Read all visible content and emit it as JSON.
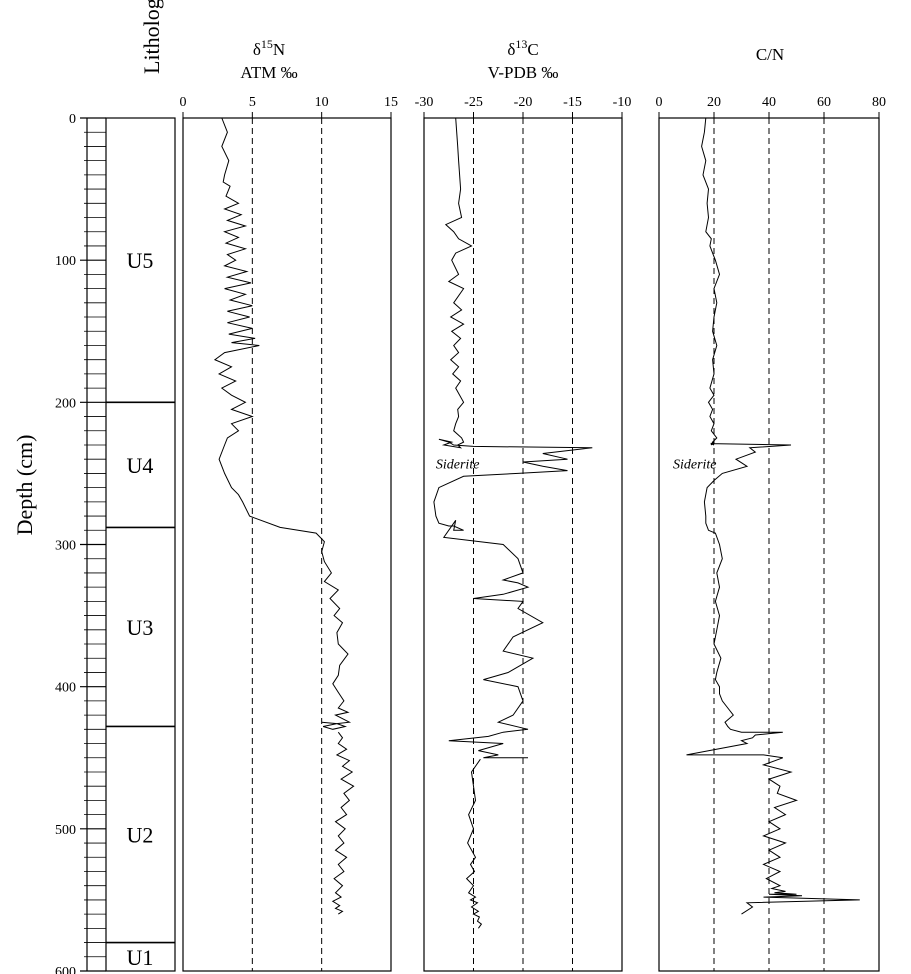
{
  "chart_data": [
    {
      "type": "table",
      "panel": "lithology",
      "title": "Lithology",
      "ylabel": "Depth (cm)",
      "ylim": [
        0,
        600
      ],
      "yticks": [
        0,
        100,
        200,
        300,
        400,
        500,
        600
      ],
      "units": [
        {
          "label": "U5",
          "top": 0,
          "bottom": 200
        },
        {
          "label": "U4",
          "top": 200,
          "bottom": 288
        },
        {
          "label": "U3",
          "top": 288,
          "bottom": 428
        },
        {
          "label": "U2",
          "top": 428,
          "bottom": 580
        },
        {
          "label": "U1",
          "top": 580,
          "bottom": 600
        }
      ]
    },
    {
      "type": "line",
      "panel": "d15n",
      "title_symbol": "δ",
      "title_sup": "15",
      "title_elem": "N",
      "subtitle": "ATM ‰",
      "xlim": [
        0,
        15
      ],
      "xticks": [
        "0",
        "5",
        "10",
        "15"
      ],
      "xtick_values": [
        0,
        5,
        10,
        15
      ],
      "reference_lines": [
        5,
        10
      ],
      "series": [
        {
          "x": [
            2.8,
            3.2,
            2.8,
            3.3,
            3.0,
            2.9,
            3.4,
            3.1,
            4.0,
            3.0,
            4.2,
            3.2,
            4.5,
            3.0,
            4.0,
            3.1,
            4.5,
            3.2,
            3.8,
            3.0,
            4.6,
            3.2,
            4.9,
            3.0,
            4.5,
            3.4,
            5.0,
            3.2,
            4.8,
            3.2,
            5.0,
            3.3,
            5.2,
            3.5,
            5.5,
            3.0,
            2.3,
            3.5,
            2.6,
            3.8,
            2.8,
            3.5,
            4.5,
            3.5,
            5.0,
            3.5,
            4.0,
            3.2,
            3.0,
            2.6,
            3.0,
            3.5,
            4.0,
            4.3,
            4.8,
            7.0,
            9.6,
            10.2,
            10.0,
            10.2,
            10.7,
            10.2,
            11.2,
            10.6,
            11.3,
            10.9,
            11.5,
            11.1,
            11.2,
            11.9,
            11.3,
            11.2,
            10.8,
            11.2,
            11.6,
            11.2,
            11.9,
            11.0,
            12.0,
            11.1,
            11.7,
            10.8,
            10.1,
            11.1,
            10.0
          ],
          "y": [
            0,
            10,
            20,
            30,
            40,
            45,
            48,
            55,
            60,
            64,
            68,
            72,
            76,
            80,
            84,
            88,
            92,
            96,
            100,
            104,
            108,
            112,
            116,
            120,
            124,
            128,
            132,
            136,
            140,
            144,
            148,
            152,
            155,
            158,
            160,
            165,
            170,
            175,
            180,
            185,
            190,
            195,
            200,
            205,
            210,
            215,
            220,
            225,
            230,
            240,
            250,
            260,
            265,
            270,
            280,
            288,
            292,
            298,
            305,
            312,
            320,
            326,
            332,
            338,
            345,
            350,
            355,
            362,
            370,
            377,
            385,
            392,
            398,
            404,
            410,
            415,
            418,
            420,
            425,
            426,
            428,
            430,
            428,
            426,
            425
          ]
        },
        {
          "x": [
            11.2,
            11.5,
            11.2,
            11.8,
            11.1,
            12.0,
            11.5,
            12.2,
            11.4,
            12.3,
            11.6,
            12.0,
            11.4,
            11.8,
            11.0,
            11.7,
            11.2,
            11.6,
            11.0,
            11.8,
            11.2,
            11.6,
            10.9,
            11.5,
            11.0,
            11.4,
            10.8,
            11.3,
            11.0,
            11.5,
            11.2
          ],
          "y": [
            432,
            436,
            440,
            444,
            448,
            452,
            456,
            460,
            465,
            470,
            475,
            480,
            485,
            490,
            495,
            500,
            505,
            510,
            515,
            520,
            525,
            530,
            535,
            540,
            545,
            548,
            551,
            554,
            556,
            558,
            560
          ]
        }
      ]
    },
    {
      "type": "line",
      "panel": "d13c",
      "title_symbol": "δ",
      "title_sup": "13",
      "title_elem": "C",
      "subtitle": "V-PDB ‰",
      "xlim": [
        -30,
        -10
      ],
      "xticks": [
        "-30",
        "-25",
        "-20",
        "-15",
        "-10"
      ],
      "xtick_values": [
        -30,
        -25,
        -20,
        -15,
        -10
      ],
      "reference_lines": [
        -25,
        -20,
        -15
      ],
      "annotation": "Siderite",
      "annotation_y": 243,
      "series": [
        {
          "x": [
            -26.8,
            -26.7,
            -26.6,
            -26.5,
            -26.4,
            -26.3,
            -26.5,
            -26.2,
            -27.8,
            -27.0,
            -26.5,
            -25.2,
            -26.8,
            -27.2,
            -26.5,
            -27.5,
            -26.0,
            -27.0,
            -26.2,
            -27.3,
            -26.0,
            -27.2,
            -26.3,
            -27.0,
            -26.5,
            -27.3,
            -26.5,
            -27.1,
            -26.3,
            -26.8,
            -26.0,
            -26.6,
            -26.5,
            -26.8,
            -27.0,
            -26.2,
            -26.0,
            -26.6,
            -26.3,
            -28.0,
            -27.2,
            -28.5,
            -27.5,
            -27.0,
            -25.0,
            -13.0,
            -18.0,
            -15.5,
            -20.0,
            -18.0,
            -15.5,
            -20.5,
            -26.0,
            -28.5,
            -29.0,
            -28.8,
            -28.5,
            -27.5,
            -27.0,
            -26.0,
            -27.0,
            -26.8,
            -28.0,
            -22.0,
            -20.5,
            -20.0,
            -22.0,
            -20.5,
            -19.5,
            -22.0,
            -25.0,
            -20.0,
            -20.5,
            -18.0,
            -21.0,
            -22.0,
            -19.0,
            -21.5,
            -24.0,
            -20.5,
            -20.0,
            -21.0,
            -22.5,
            -19.5,
            -22.0,
            -23.5,
            -27.5,
            -22.0,
            -24.5,
            -22.5,
            -24.0,
            -19.5
          ],
          "y": [
            0,
            10,
            20,
            30,
            40,
            50,
            60,
            70,
            75,
            80,
            85,
            90,
            95,
            100,
            110,
            115,
            120,
            130,
            135,
            140,
            145,
            150,
            155,
            160,
            165,
            170,
            175,
            180,
            185,
            190,
            200,
            205,
            210,
            215,
            220,
            225,
            228,
            230,
            232,
            230,
            228,
            226,
            228,
            230,
            231,
            232,
            236,
            240,
            242,
            245,
            248,
            250,
            252,
            260,
            270,
            280,
            285,
            287,
            287,
            290,
            290,
            283,
            295,
            300,
            310,
            320,
            325,
            327,
            330,
            335,
            338,
            340,
            345,
            355,
            365,
            375,
            380,
            390,
            395,
            400,
            410,
            420,
            425,
            430,
            432,
            435,
            438,
            440,
            445,
            448,
            450,
            450
          ]
        },
        {
          "x": [
            -24.3,
            -25.2,
            -25.0,
            -24.8,
            -25.5,
            -25.0,
            -25.6,
            -24.8,
            -25.3,
            -24.9,
            -25.7,
            -25.0,
            -25.5,
            -24.8,
            -25.3,
            -24.6,
            -25.2,
            -24.5,
            -25.0,
            -24.4,
            -24.6,
            -24.2,
            -24.5
          ],
          "y": [
            451,
            460,
            470,
            480,
            490,
            500,
            510,
            520,
            525,
            530,
            535,
            540,
            545,
            548,
            550,
            552,
            555,
            558,
            560,
            562,
            565,
            567,
            570
          ]
        }
      ]
    },
    {
      "type": "line",
      "panel": "cn",
      "title": "C/N",
      "xlim": [
        0,
        80
      ],
      "xticks": [
        "0",
        "20",
        "40",
        "60",
        "80"
      ],
      "xtick_values": [
        0,
        20,
        40,
        60,
        80
      ],
      "reference_lines": [
        20,
        40,
        60
      ],
      "annotation": "Siderite",
      "annotation_y": 243,
      "series": [
        {
          "x": [
            17,
            16.5,
            15.5,
            17,
            16,
            18,
            17.5,
            18,
            17,
            19,
            18.5,
            19.5,
            20.5,
            22,
            20,
            21,
            20,
            19.5,
            21,
            19.5,
            20,
            18.5,
            20,
            18,
            19.5,
            18.5,
            20,
            19,
            21,
            19.5,
            19,
            20,
            19,
            20,
            19,
            19,
            19,
            48,
            33,
            35,
            28,
            32,
            23,
            20,
            17.5,
            16.5,
            17,
            17,
            18,
            20.5,
            22,
            23,
            21,
            22,
            20.5,
            22,
            21,
            20,
            22.5,
            21,
            20.5,
            22,
            22,
            23,
            25,
            27,
            24,
            25,
            26,
            30,
            45,
            35,
            34,
            30,
            32,
            10,
            38,
            45,
            38,
            48,
            40,
            44,
            43,
            50,
            42,
            46,
            40,
            44,
            38,
            46,
            40,
            44,
            38,
            44,
            39,
            44,
            41,
            46,
            42,
            50,
            40,
            52,
            38,
            73,
            32,
            34,
            30
          ],
          "y": [
            0,
            10,
            20,
            30,
            40,
            50,
            60,
            70,
            80,
            85,
            90,
            95,
            100,
            110,
            120,
            130,
            140,
            150,
            160,
            170,
            180,
            190,
            195,
            200,
            205,
            210,
            215,
            220,
            225,
            228,
            230,
            228,
            229,
            230,
            229,
            230,
            229,
            230,
            232,
            235,
            240,
            245,
            250,
            255,
            260,
            270,
            280,
            285,
            290,
            292,
            300,
            310,
            320,
            330,
            340,
            350,
            360,
            370,
            380,
            390,
            395,
            400,
            405,
            410,
            415,
            420,
            425,
            428,
            430,
            432,
            432,
            434,
            436,
            438,
            440,
            448,
            448,
            450,
            455,
            460,
            465,
            470,
            475,
            480,
            485,
            490,
            495,
            500,
            505,
            510,
            515,
            520,
            525,
            530,
            535,
            540,
            542,
            544,
            545,
            546,
            546,
            547,
            548,
            550,
            552,
            555,
            560
          ]
        }
      ]
    }
  ]
}
